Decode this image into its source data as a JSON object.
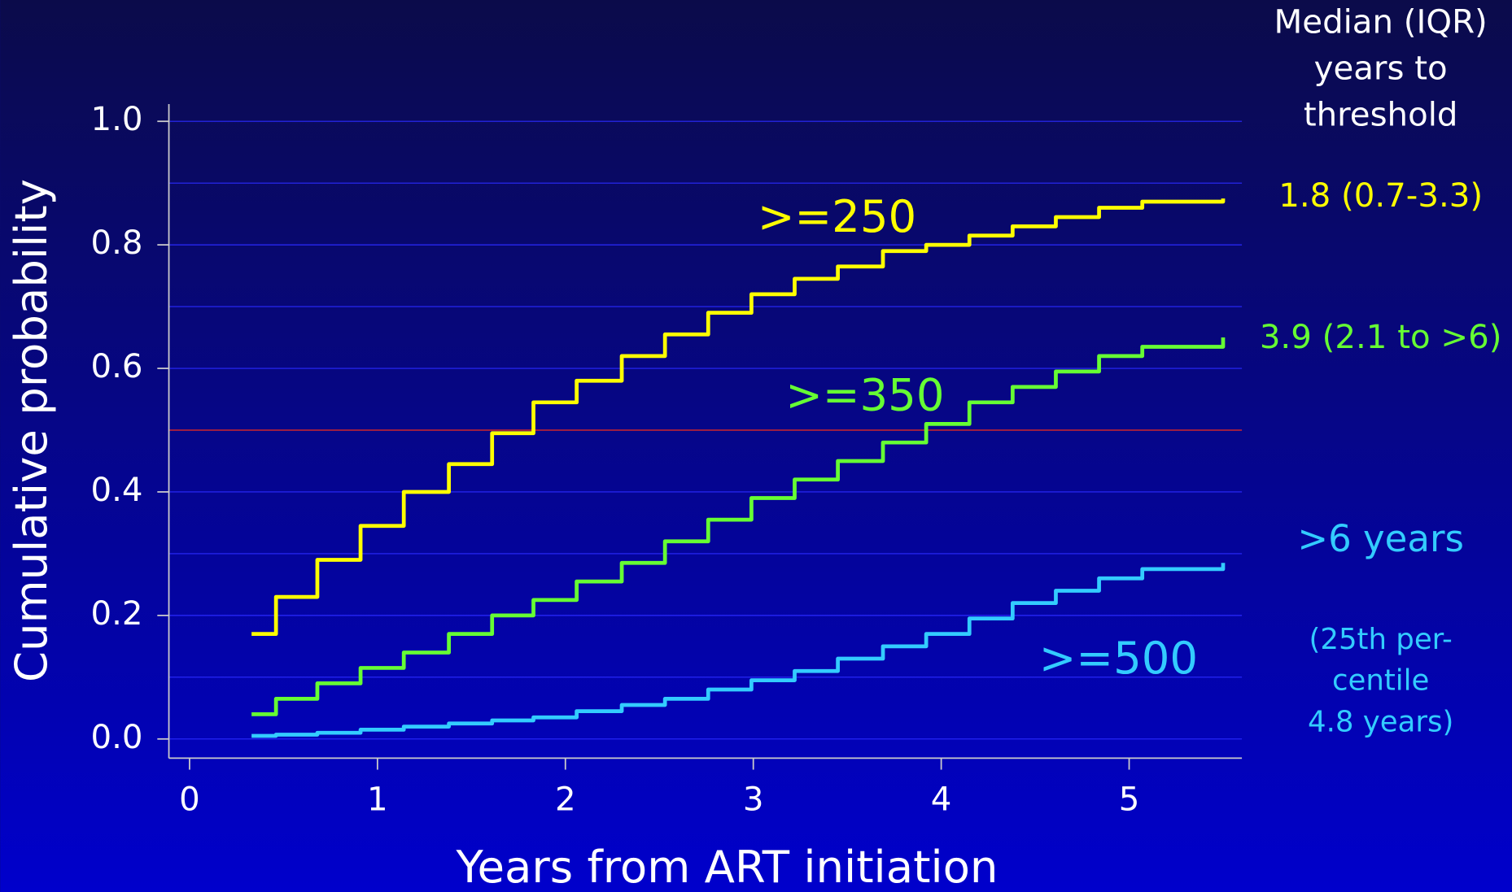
{
  "chart_data": {
    "type": "step",
    "xlabel": "Years from ART initiation",
    "ylabel": "Cumulative probability",
    "xlim": [
      -0.11,
      5.6
    ],
    "ylim": [
      -0.031,
      1.028
    ],
    "xticks": [
      0,
      1,
      2,
      3,
      4,
      5
    ],
    "yticks": [
      {
        "value": 0,
        "label": "0.0"
      },
      {
        "value": 0.2,
        "label": "0.2"
      },
      {
        "value": 0.4,
        "label": "0.4"
      },
      {
        "value": 0.6,
        "label": "0.6"
      },
      {
        "value": 0.8,
        "label": "0.8"
      },
      {
        "value": 1,
        "label": "1.0"
      }
    ],
    "y_gridlines": [
      0.1,
      0.3,
      0.5,
      0.7,
      0.9
    ],
    "grid": true,
    "reference_line": {
      "value": 0.5,
      "color": "#cc2222"
    },
    "x": [
      0.33,
      0.46,
      0.68,
      0.91,
      1.14,
      1.38,
      1.61,
      1.83,
      2.06,
      2.3,
      2.53,
      2.76,
      2.99,
      3.22,
      3.45,
      3.69,
      3.92,
      4.15,
      4.38,
      4.61,
      4.84,
      5.07,
      5.5
    ],
    "series": [
      {
        "name": ">=250",
        "color": "#ffff00",
        "median": "1.8 (0.7-3.3)",
        "values": [
          0.17,
          0.23,
          0.29,
          0.345,
          0.4,
          0.445,
          0.495,
          0.545,
          0.58,
          0.62,
          0.655,
          0.69,
          0.72,
          0.745,
          0.765,
          0.79,
          0.8,
          0.815,
          0.83,
          0.845,
          0.86,
          0.87,
          0.875
        ]
      },
      {
        "name": ">=350",
        "color": "#66ff33",
        "median": "3.9 (2.1 to >6)",
        "values": [
          0.04,
          0.065,
          0.09,
          0.115,
          0.14,
          0.17,
          0.2,
          0.225,
          0.255,
          0.285,
          0.32,
          0.355,
          0.39,
          0.42,
          0.45,
          0.48,
          0.51,
          0.545,
          0.57,
          0.595,
          0.62,
          0.635,
          0.65
        ]
      },
      {
        "name": ">=500",
        "color": "#33ccff",
        "median": ">6 years",
        "note": [
          "(25th per-",
          "centile",
          "4.8 years)"
        ],
        "values": [
          0.005,
          0.007,
          0.01,
          0.015,
          0.02,
          0.025,
          0.03,
          0.035,
          0.045,
          0.055,
          0.065,
          0.08,
          0.095,
          0.11,
          0.13,
          0.15,
          0.17,
          0.195,
          0.22,
          0.24,
          0.26,
          0.275,
          0.285
        ]
      }
    ],
    "median_header": [
      "Median (IQR)",
      "years to",
      "threshold"
    ]
  }
}
